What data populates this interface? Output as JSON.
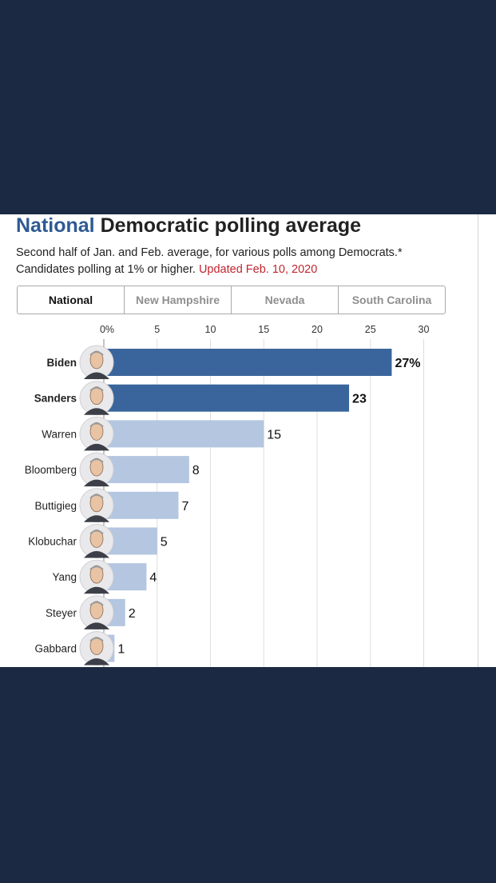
{
  "header": {
    "title_highlight": "National",
    "title_rest": " Democratic polling average",
    "subtitle_line1": "Second half of Jan. and Feb. average, for various polls among Democrats.*",
    "subtitle_line2": "Candidates polling at 1% or higher. ",
    "updated": "Updated Feb. 10, 2020"
  },
  "tabs": [
    {
      "label": "National",
      "selected": true
    },
    {
      "label": "New Hampshire",
      "selected": false
    },
    {
      "label": "Nevada",
      "selected": false
    },
    {
      "label": "South Carolina",
      "selected": false
    }
  ],
  "colors": {
    "brand_blue": "#2f5a92",
    "bar_top": "#3a659c",
    "bar_rest": "#b4c6e0",
    "updated_red": "#c0262e",
    "background": "#1b2a42"
  },
  "chart_data": {
    "type": "bar",
    "orientation": "horizontal",
    "categories": [
      "Biden",
      "Sanders",
      "Warren",
      "Bloomberg",
      "Buttigieg",
      "Klobuchar",
      "Yang",
      "Steyer",
      "Gabbard"
    ],
    "values": [
      27,
      23,
      15,
      8,
      7,
      5,
      4,
      2,
      1
    ],
    "value_labels": [
      "27%",
      "23",
      "15",
      "8",
      "7",
      "5",
      "4",
      "2",
      "1"
    ],
    "highlighted": [
      true,
      true,
      false,
      false,
      false,
      false,
      false,
      false,
      false
    ],
    "xticks": [
      "0%",
      "5",
      "10",
      "15",
      "20",
      "25",
      "30"
    ],
    "xlim": [
      0,
      30
    ],
    "grid": true,
    "candidate_portraits": [
      "face-icon",
      "face-icon",
      "face-icon",
      "face-icon",
      "face-icon",
      "face-icon",
      "face-icon",
      "face-icon",
      "face-icon"
    ]
  }
}
